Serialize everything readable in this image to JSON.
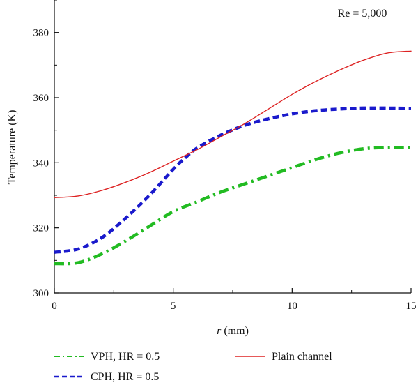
{
  "chart_data": {
    "type": "line",
    "title": "",
    "xlabel_italic": "r",
    "xlabel_rest": " (mm)",
    "ylabel": "Temperature (K)",
    "xlim": [
      0,
      15
    ],
    "ylim": [
      300,
      390
    ],
    "x_ticks": [
      0,
      5,
      10,
      15
    ],
    "x_tick_labels": [
      "0",
      "5",
      "10",
      "15"
    ],
    "y_ticks": [
      300,
      320,
      340,
      360,
      380
    ],
    "y_tick_labels": [
      "300",
      "320",
      "340",
      "360",
      "380"
    ],
    "annotation": "Re = 5,000",
    "grid": false,
    "legend_position": "bottom",
    "series": [
      {
        "name": "VPH, HR = 0.5",
        "color": "#22bb22",
        "style": "dash-dot",
        "x": [
          0,
          1,
          2,
          3,
          4,
          5,
          6,
          7,
          8,
          9,
          10,
          11,
          12,
          13,
          14,
          15
        ],
        "y": [
          309,
          309.3,
          312,
          316,
          320.5,
          325,
          328,
          331,
          333.5,
          336,
          338.5,
          341,
          343,
          344.3,
          344.7,
          344.7
        ]
      },
      {
        "name": "CPH, HR = 0.5",
        "color": "#1a1acc",
        "style": "dashed",
        "x": [
          0,
          1,
          2,
          3,
          4,
          5,
          5.5,
          6,
          7,
          8,
          9,
          10,
          11,
          12,
          13,
          14,
          15
        ],
        "y": [
          312.5,
          313.5,
          317,
          323,
          330,
          338,
          341.5,
          344.5,
          348.5,
          351.5,
          353.5,
          355,
          356,
          356.5,
          356.8,
          356.8,
          356.7
        ]
      },
      {
        "name": "Plain channel",
        "color": "#dd2222",
        "style": "solid",
        "x": [
          0,
          1,
          2,
          3,
          4,
          5,
          6,
          7,
          8,
          9,
          10,
          11,
          12,
          13,
          14,
          15
        ],
        "y": [
          329.3,
          329.8,
          331.5,
          334,
          337,
          340.5,
          344,
          348,
          352,
          356.5,
          361,
          365,
          368.5,
          371.5,
          373.7,
          374.3
        ]
      }
    ]
  }
}
